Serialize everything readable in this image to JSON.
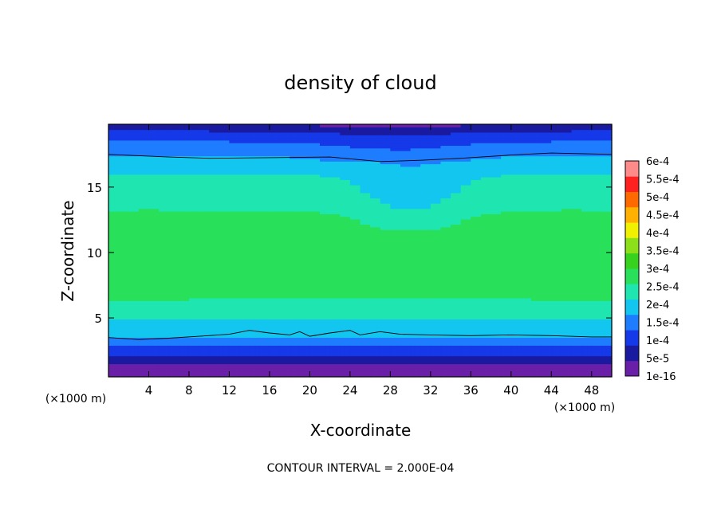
{
  "chart_data": {
    "type": "heatmap",
    "title": "density of cloud",
    "xlabel": "X-coordinate",
    "ylabel": "Z-coordinate",
    "x_unit_left": "(×1000 m)",
    "x_unit_right": "(×1000 m)",
    "xlim": [
      0,
      50
    ],
    "ylim": [
      0.5,
      19.8
    ],
    "xticks": [
      4,
      8,
      12,
      16,
      20,
      24,
      28,
      32,
      36,
      40,
      44,
      48
    ],
    "xtick_labels": [
      "4",
      "8",
      "12",
      "16",
      "20",
      "24",
      "28",
      "32",
      "36",
      "40",
      "44",
      "48"
    ],
    "yticks": [
      5,
      10,
      15
    ],
    "ytick_labels": [
      "5",
      "10",
      "15"
    ],
    "contour_interval": 0.0002,
    "note": "CONTOUR INTERVAL = 2.000E-04",
    "colorbar": {
      "levels": [
        1e-16,
        5e-05,
        0.0001,
        0.00015,
        0.0002,
        0.00025,
        0.0003,
        0.00035,
        0.0004,
        0.00045,
        0.0005,
        0.00055,
        0.0006
      ],
      "labels": [
        "1e-16",
        "5e-5",
        "1e-4",
        "1.5e-4",
        "2e-4",
        "2.5e-4",
        "3e-4",
        "3.5e-4",
        "4e-4",
        "4.5e-4",
        "5e-4",
        "5.5e-4",
        "6e-4"
      ],
      "colors": [
        "#6a1fa8",
        "#1a1aa0",
        "#1538e8",
        "#1e7cff",
        "#12c6f0",
        "#1fe6b0",
        "#28e05a",
        "#36d21e",
        "#8ce01a",
        "#f0f000",
        "#ffb000",
        "#ff6a00",
        "#ff2020",
        "#ff8a8a"
      ]
    },
    "contours": [
      {
        "level": 0.0002,
        "points": [
          [
            0,
            17.5
          ],
          [
            6,
            17.3
          ],
          [
            10,
            17.2
          ],
          [
            16,
            17.25
          ],
          [
            22,
            17.3
          ],
          [
            27,
            16.95
          ],
          [
            31,
            17.05
          ],
          [
            35,
            17.2
          ],
          [
            40,
            17.45
          ],
          [
            44,
            17.6
          ],
          [
            50,
            17.5
          ]
        ]
      },
      {
        "level": 0.0002,
        "points": [
          [
            0,
            3.5
          ],
          [
            3,
            3.35
          ],
          [
            6,
            3.45
          ],
          [
            9,
            3.6
          ],
          [
            12,
            3.75
          ],
          [
            14,
            4.05
          ],
          [
            16,
            3.85
          ],
          [
            18,
            3.7
          ],
          [
            19,
            3.95
          ],
          [
            20,
            3.6
          ],
          [
            22,
            3.85
          ],
          [
            24,
            4.05
          ],
          [
            25,
            3.7
          ],
          [
            27,
            3.95
          ],
          [
            29,
            3.75
          ],
          [
            32,
            3.7
          ],
          [
            36,
            3.65
          ],
          [
            40,
            3.7
          ],
          [
            44,
            3.65
          ],
          [
            48,
            3.55
          ],
          [
            50,
            3.55
          ]
        ]
      }
    ],
    "field": {
      "z_profile": [
        [
          0.5,
          1e-16
        ],
        [
          1.0,
          1e-16
        ],
        [
          1.6,
          5e-05
        ],
        [
          2.2,
          0.0001
        ],
        [
          2.9,
          0.00015
        ],
        [
          3.6,
          0.0002
        ],
        [
          5.0,
          0.00025
        ],
        [
          6.5,
          0.0003
        ],
        [
          8.5,
          0.00033
        ],
        [
          10.5,
          0.000325
        ],
        [
          12.5,
          0.00031
        ],
        [
          14.5,
          0.00028
        ],
        [
          16.0,
          0.00025
        ],
        [
          17.4,
          0.0002
        ],
        [
          18.5,
          0.00015
        ],
        [
          19.3,
          0.0001
        ],
        [
          19.8,
          5e-05
        ]
      ],
      "regions": [
        "purple band (1e-16) near the surface, z below ~1.1",
        "dark blue to blue (5e-5 to 1.5e-4) between z ~1.2 and ~3.5",
        "cyan (2e-4) just above z ~3.5 and just below z ~17.5",
        "green (2.5e-4 to 3.5e-4) throughout the interior, z ~4 to ~16",
        "lighter green/cyan patch (2e-4 to 2.5e-4) near x ~28-34, z ~13-17",
        "blue to dark blue (1.5e-4 to 5e-5) near the top, z above ~18"
      ]
    }
  }
}
